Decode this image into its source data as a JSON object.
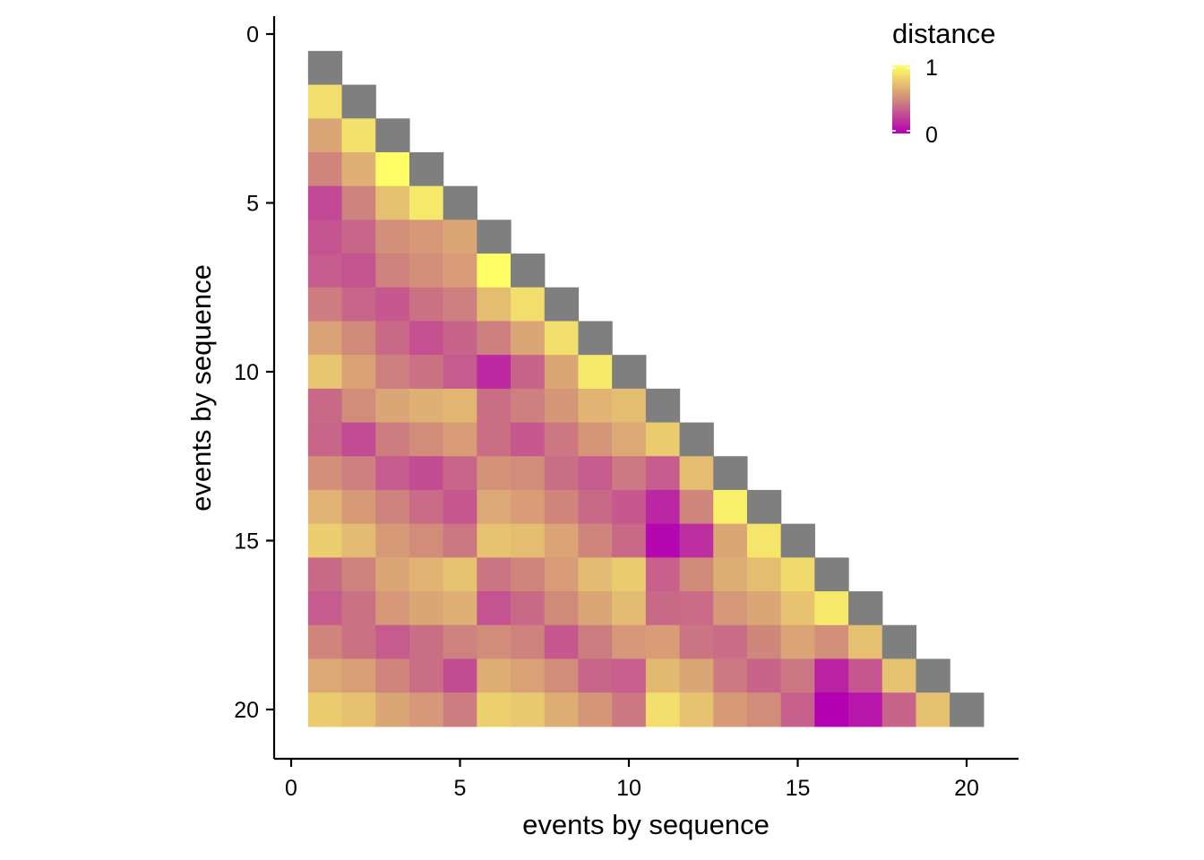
{
  "chart_data": {
    "type": "heatmap",
    "title": "",
    "xlabel": "events by sequence",
    "ylabel": "events by sequence",
    "xlim": [
      -0.5,
      21.5
    ],
    "ylim": [
      -0.5,
      21.5
    ],
    "y_reversed": true,
    "xticks": [
      0,
      5,
      10,
      15,
      20
    ],
    "yticks": [
      0,
      5,
      10,
      15,
      20
    ],
    "x_tick_labels": [
      "0",
      "5",
      "10",
      "15",
      "20"
    ],
    "y_tick_labels": [
      "0",
      "5",
      "10",
      "15",
      "20"
    ],
    "grid": false,
    "diagonal_color": "#7f7f7f",
    "color_scale": {
      "low": "#b300b3",
      "mid": "#d08a7a",
      "high": "#ffff66",
      "min": 0,
      "max": 1
    },
    "legend": {
      "title": "distance",
      "max_label": "1",
      "min_label": "0",
      "placement": "top-right"
    },
    "rows": [
      [],
      [
        0.86
      ],
      [
        0.62,
        0.87
      ],
      [
        0.48,
        0.66,
        0.99
      ],
      [
        0.26,
        0.47,
        0.73,
        0.9
      ],
      [
        0.3,
        0.37,
        0.52,
        0.56,
        0.62
      ],
      [
        0.33,
        0.3,
        0.47,
        0.52,
        0.58,
        0.99
      ],
      [
        0.45,
        0.37,
        0.32,
        0.41,
        0.46,
        0.72,
        0.86
      ],
      [
        0.6,
        0.5,
        0.38,
        0.29,
        0.36,
        0.46,
        0.62,
        0.86
      ],
      [
        0.75,
        0.6,
        0.46,
        0.41,
        0.33,
        0.15,
        0.36,
        0.62,
        0.91
      ],
      [
        0.38,
        0.51,
        0.62,
        0.66,
        0.69,
        0.4,
        0.46,
        0.55,
        0.68,
        0.72
      ],
      [
        0.37,
        0.27,
        0.45,
        0.51,
        0.58,
        0.4,
        0.32,
        0.43,
        0.55,
        0.63,
        0.78
      ],
      [
        0.53,
        0.46,
        0.33,
        0.28,
        0.37,
        0.54,
        0.51,
        0.4,
        0.33,
        0.44,
        0.33,
        0.72
      ],
      [
        0.67,
        0.57,
        0.47,
        0.39,
        0.31,
        0.63,
        0.58,
        0.48,
        0.38,
        0.32,
        0.14,
        0.48,
        0.94
      ],
      [
        0.79,
        0.71,
        0.57,
        0.51,
        0.43,
        0.74,
        0.72,
        0.61,
        0.48,
        0.38,
        0.02,
        0.17,
        0.62,
        0.89
      ],
      [
        0.38,
        0.47,
        0.62,
        0.68,
        0.74,
        0.42,
        0.48,
        0.58,
        0.71,
        0.78,
        0.35,
        0.5,
        0.65,
        0.72,
        0.84
      ],
      [
        0.33,
        0.41,
        0.56,
        0.62,
        0.66,
        0.3,
        0.38,
        0.5,
        0.62,
        0.71,
        0.38,
        0.39,
        0.56,
        0.62,
        0.74,
        0.9
      ],
      [
        0.48,
        0.41,
        0.33,
        0.4,
        0.47,
        0.51,
        0.47,
        0.32,
        0.45,
        0.56,
        0.58,
        0.42,
        0.39,
        0.49,
        0.61,
        0.52,
        0.73
      ],
      [
        0.63,
        0.59,
        0.48,
        0.4,
        0.28,
        0.65,
        0.6,
        0.51,
        0.37,
        0.34,
        0.7,
        0.62,
        0.44,
        0.36,
        0.43,
        0.12,
        0.31,
        0.74
      ],
      [
        0.78,
        0.73,
        0.62,
        0.56,
        0.45,
        0.8,
        0.77,
        0.65,
        0.55,
        0.43,
        0.86,
        0.74,
        0.57,
        0.51,
        0.35,
        0.0,
        0.08,
        0.36,
        0.73
      ]
    ]
  }
}
